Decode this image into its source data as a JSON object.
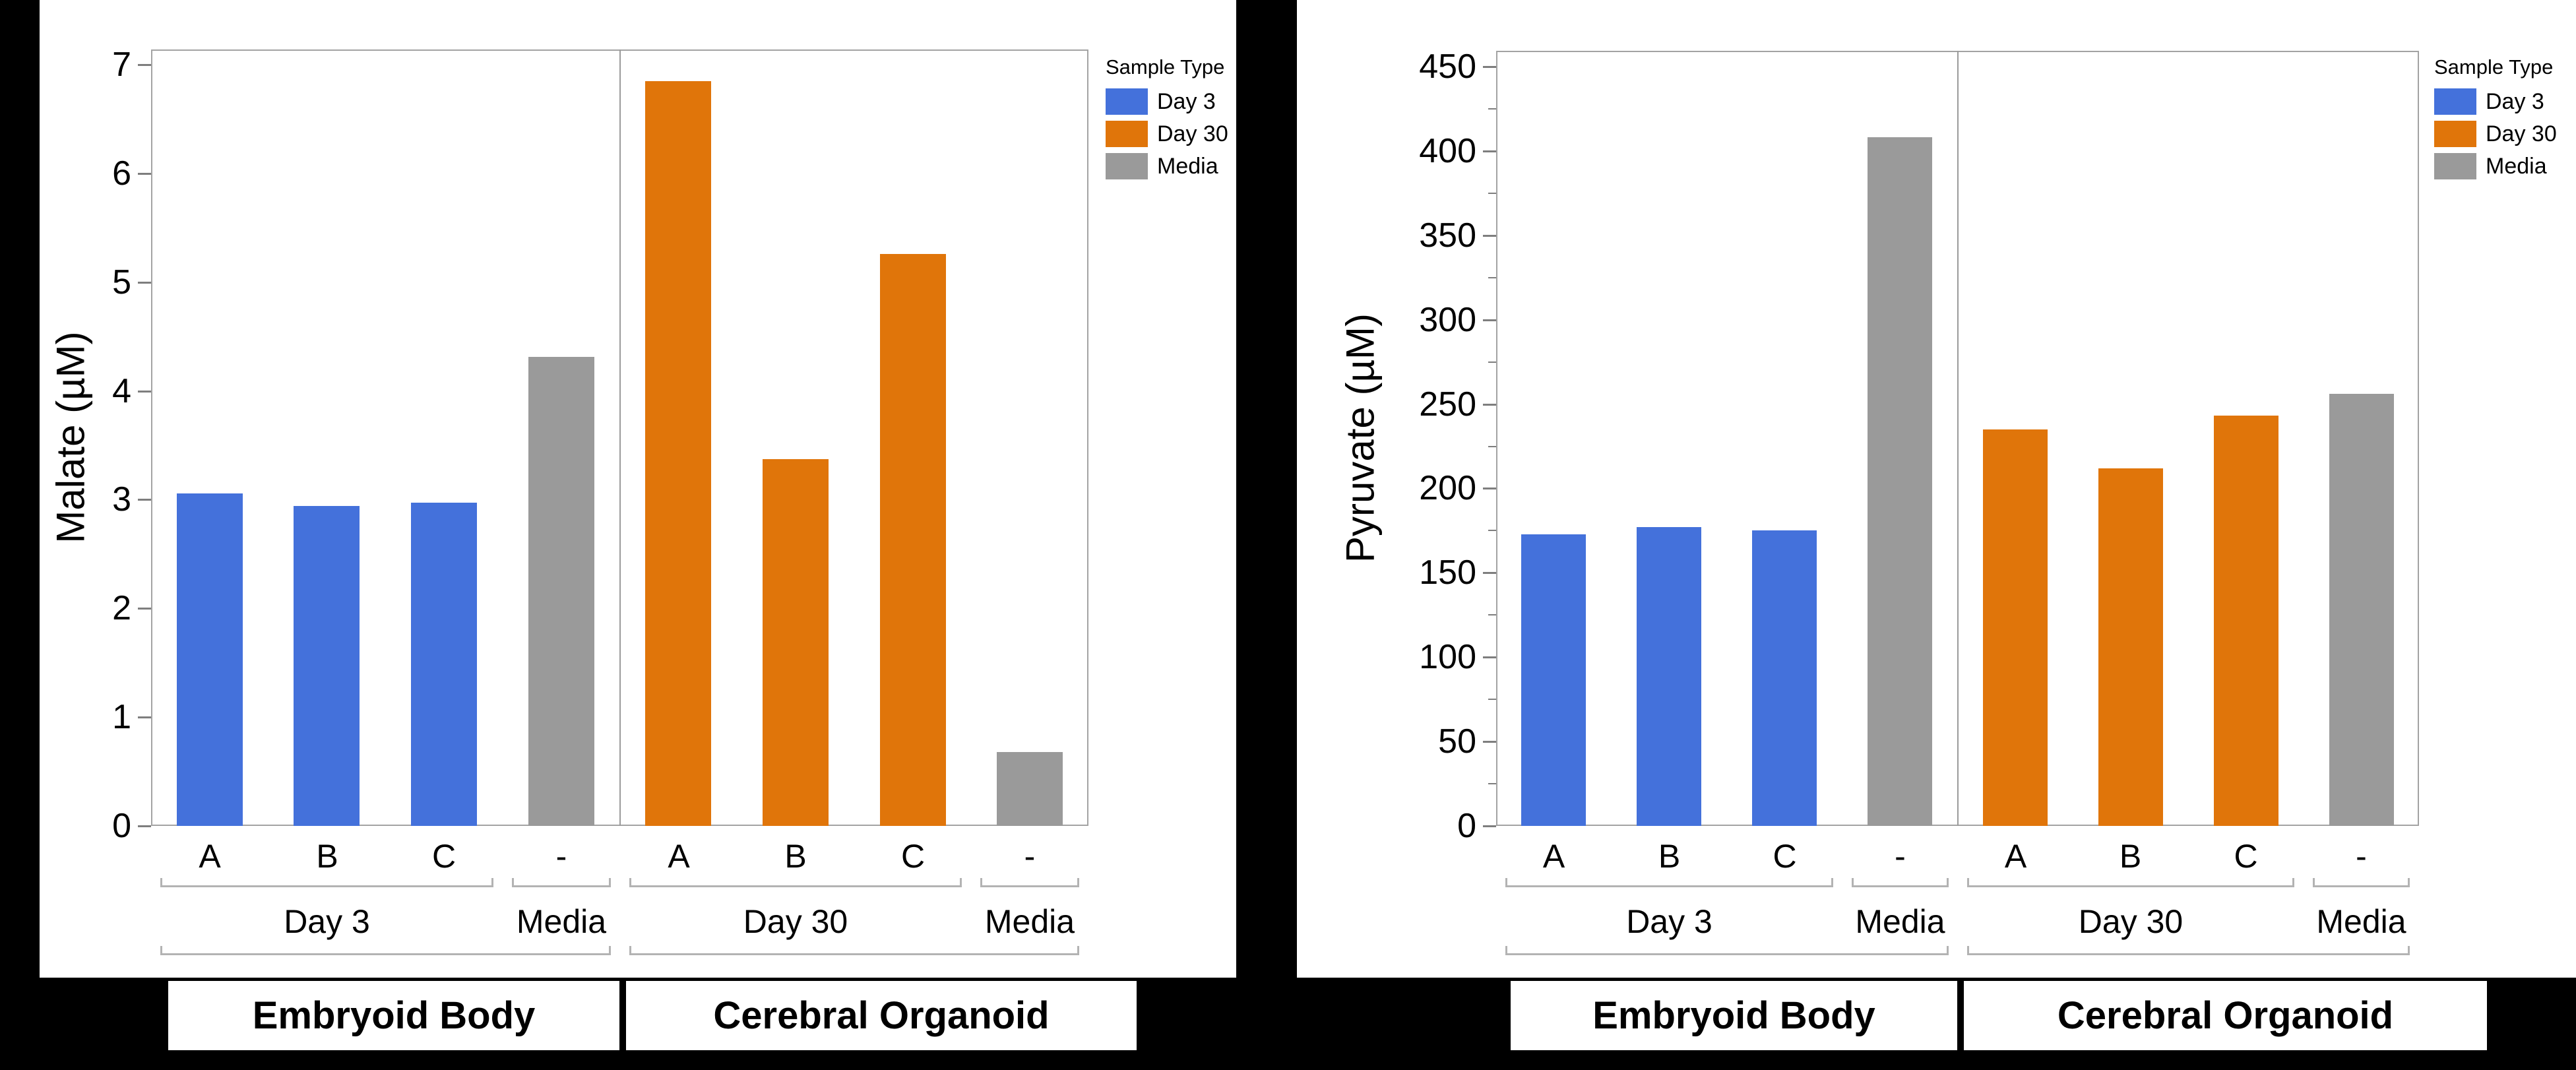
{
  "figure": {
    "background": "#000000",
    "panel_background": "#FFFFFF"
  },
  "colors": {
    "day3": "#4471DB",
    "day30": "#E0750A",
    "media": "#9A9A9A",
    "axis_border": "#A3A3A3",
    "tick": "#7E7E7E",
    "bracket": "#B3B3B3",
    "text": "#000000"
  },
  "legend": {
    "title": "Sample Type",
    "entries": [
      {
        "label": "Day 3",
        "color_key": "day3",
        "color": "#4471DB"
      },
      {
        "label": "Day 30",
        "color_key": "day30",
        "color": "#E0750A"
      },
      {
        "label": "Media",
        "color_key": "media",
        "color": "#9A9A9A"
      }
    ]
  },
  "chart_data": [
    {
      "type": "bar",
      "title": "",
      "ylabel": "Malate (µM)",
      "xlabel": "",
      "ylim": [
        0,
        7
      ],
      "ytick_step": 1,
      "minor_tick_step": null,
      "yticks": [
        0,
        1,
        2,
        3,
        4,
        5,
        6,
        7
      ],
      "grid": false,
      "legend_position": "top-right-outside",
      "categories": [
        "A",
        "B",
        "C",
        "-",
        "A",
        "B",
        "C",
        "-"
      ],
      "series_of_bars": [
        "Day 3",
        "Day 3",
        "Day 3",
        "Media",
        "Day 30",
        "Day 30",
        "Day 30",
        "Media"
      ],
      "series_color_keys": [
        "day3",
        "day3",
        "day3",
        "media",
        "day30",
        "day30",
        "day30",
        "media"
      ],
      "values": [
        3.06,
        2.94,
        2.97,
        4.31,
        6.85,
        3.37,
        5.26,
        0.68
      ],
      "section_divider_after_index": 3,
      "group_labels": [
        {
          "label": "Day 3",
          "start": 0,
          "end": 2
        },
        {
          "label": "Media",
          "start": 3,
          "end": 3
        },
        {
          "label": "Day 30",
          "start": 4,
          "end": 6
        },
        {
          "label": "Media",
          "start": 7,
          "end": 7
        }
      ],
      "super_group_labels": [
        {
          "label": "Embryoid Body",
          "start": 0,
          "end": 3
        },
        {
          "label": "Cerebral Organoid",
          "start": 4,
          "end": 7
        }
      ]
    },
    {
      "type": "bar",
      "title": "",
      "ylabel": "Pyruvate (µM)",
      "xlabel": "",
      "ylim": [
        0,
        450
      ],
      "ytick_step": 50,
      "minor_tick_step": 25,
      "yticks": [
        0,
        50,
        100,
        150,
        200,
        250,
        300,
        350,
        400,
        450
      ],
      "grid": false,
      "legend_position": "top-right-outside",
      "categories": [
        "A",
        "B",
        "C",
        "-",
        "A",
        "B",
        "C",
        "-"
      ],
      "series_of_bars": [
        "Day 3",
        "Day 3",
        "Day 3",
        "Media",
        "Day 30",
        "Day 30",
        "Day 30",
        "Media"
      ],
      "series_color_keys": [
        "day3",
        "day3",
        "day3",
        "media",
        "day30",
        "day30",
        "day30",
        "media"
      ],
      "values": [
        173,
        177,
        175,
        408,
        235,
        212,
        243,
        256
      ],
      "section_divider_after_index": 3,
      "group_labels": [
        {
          "label": "Day 3",
          "start": 0,
          "end": 2
        },
        {
          "label": "Media",
          "start": 3,
          "end": 3
        },
        {
          "label": "Day 30",
          "start": 4,
          "end": 6
        },
        {
          "label": "Media",
          "start": 7,
          "end": 7
        }
      ],
      "super_group_labels": [
        {
          "label": "Embryoid Body",
          "start": 0,
          "end": 3
        },
        {
          "label": "Cerebral Organoid",
          "start": 4,
          "end": 7
        }
      ]
    }
  ]
}
